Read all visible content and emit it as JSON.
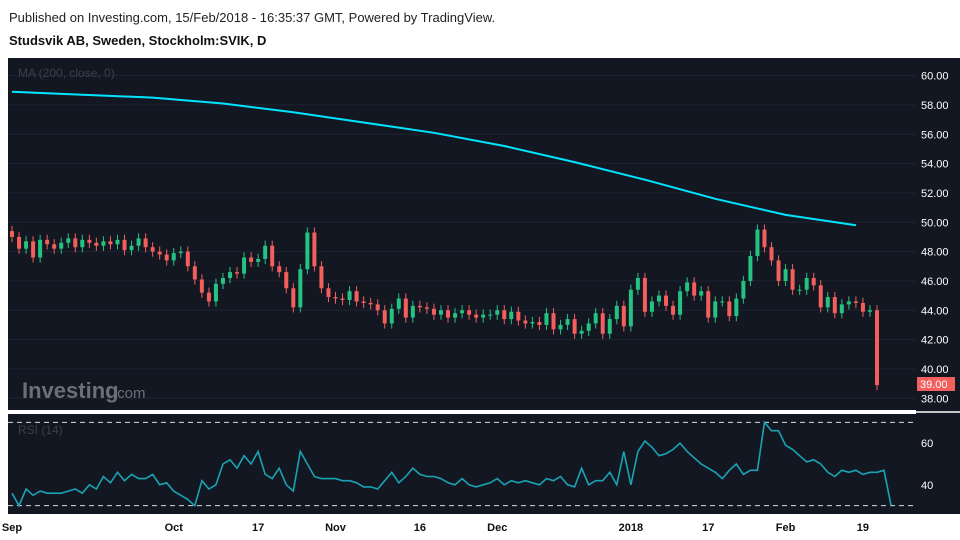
{
  "header": {
    "published": "Published on Investing.com, 15/Feb/2018 - 16:35:37 GMT, Powered by TradingView.",
    "symbol": "Studsvik AB, Sweden, Stockholm:SVIK, D"
  },
  "watermark": {
    "brand": "Investing",
    "suffix": ".com"
  },
  "colors": {
    "background": "#131722",
    "up": "#26c281",
    "down": "#f25f5c",
    "ma": "#00e5ff",
    "rsi": "#19a3b3",
    "last_price_bg": "#f25f5c"
  },
  "chart_data": {
    "type": "candlestick",
    "indicator_label": "MA (200, close, 0)",
    "rsi_label": "RSI (14)",
    "last_price_label": "39.00",
    "y_ticks": [
      "60.00",
      "58.00",
      "56.00",
      "54.00",
      "52.00",
      "50.00",
      "48.00",
      "46.00",
      "44.00",
      "42.00",
      "40.00",
      "38.00"
    ],
    "y_range": [
      37.2,
      61.2
    ],
    "rsi_ticks": [
      "60",
      "40"
    ],
    "rsi_levels": [
      70,
      30
    ],
    "rsi_range": [
      26,
      74
    ],
    "x_labels": [
      "Sep",
      "Oct",
      "17",
      "Nov",
      "16",
      "Dec",
      "2018",
      "17",
      "Feb",
      "19"
    ],
    "x_label_index": [
      0,
      23,
      35,
      46,
      58,
      69,
      88,
      99,
      110,
      121
    ],
    "ma_points": [
      [
        0,
        58.9
      ],
      [
        10,
        58.7
      ],
      [
        20,
        58.5
      ],
      [
        30,
        58.1
      ],
      [
        40,
        57.5
      ],
      [
        50,
        56.8
      ],
      [
        60,
        56.1
      ],
      [
        70,
        55.2
      ],
      [
        80,
        54.1
      ],
      [
        90,
        52.9
      ],
      [
        100,
        51.6
      ],
      [
        110,
        50.5
      ],
      [
        120,
        49.8
      ]
    ],
    "close": [
      49.0,
      48.2,
      48.7,
      47.6,
      48.8,
      48.5,
      48.2,
      48.6,
      48.9,
      48.3,
      48.8,
      48.6,
      48.4,
      48.7,
      48.5,
      48.8,
      48.1,
      48.4,
      48.9,
      48.3,
      48.0,
      47.8,
      47.4,
      47.9,
      48.0,
      47.0,
      46.1,
      45.2,
      44.6,
      45.8,
      46.2,
      46.6,
      46.5,
      47.6,
      47.3,
      47.5,
      48.4,
      47.0,
      46.6,
      45.5,
      44.2,
      46.8,
      49.3,
      47.0,
      45.5,
      44.9,
      44.8,
      44.7,
      45.3,
      44.6,
      44.5,
      44.4,
      44.0,
      43.1,
      44.1,
      44.8,
      43.5,
      44.3,
      44.2,
      44.1,
      43.7,
      44.0,
      43.5,
      43.8,
      44.0,
      43.7,
      43.5,
      43.7,
      43.7,
      44.0,
      43.4,
      43.9,
      43.3,
      43.1,
      43.2,
      43.0,
      43.8,
      42.7,
      43.0,
      43.4,
      42.4,
      42.6,
      43.1,
      43.8,
      42.4,
      43.4,
      44.3,
      42.9,
      45.4,
      46.2,
      43.9,
      44.6,
      45.0,
      44.3,
      43.7,
      45.3,
      45.9,
      45.0,
      45.3,
      43.5,
      44.6,
      44.6,
      43.6,
      44.8,
      46.0,
      47.7,
      49.5,
      48.3,
      47.4,
      46.0,
      46.8,
      45.4,
      45.4,
      46.2,
      45.7,
      44.2,
      44.9,
      43.8,
      44.4,
      44.6,
      44.5,
      43.9,
      44.0,
      38.9
    ],
    "rsi": [
      36,
      30,
      38,
      35,
      37,
      36,
      36,
      36,
      37,
      38,
      36,
      40,
      38,
      44,
      41,
      46,
      42,
      45,
      43,
      43,
      45,
      40,
      41,
      37,
      35,
      33,
      30,
      42,
      38,
      40,
      50,
      52,
      48,
      54,
      50,
      56,
      45,
      43,
      48,
      40,
      37,
      56,
      50,
      44,
      43,
      43,
      43,
      42,
      42,
      41,
      39,
      39,
      38,
      42,
      46,
      41,
      44,
      48,
      45,
      44,
      44,
      43,
      41,
      40,
      43,
      40,
      39,
      40,
      41,
      43,
      40,
      42,
      41,
      42,
      41,
      40,
      43,
      42,
      44,
      40,
      39,
      48,
      40,
      42,
      42,
      46,
      40,
      56,
      40,
      56,
      61,
      58,
      54,
      55,
      57,
      60,
      56,
      53,
      50,
      48,
      46,
      43,
      47,
      50,
      45,
      47,
      47,
      70,
      66,
      66,
      59,
      57,
      54,
      51,
      52,
      50,
      46,
      44,
      47,
      46,
      47,
      45,
      46,
      46,
      47,
      30
    ]
  }
}
